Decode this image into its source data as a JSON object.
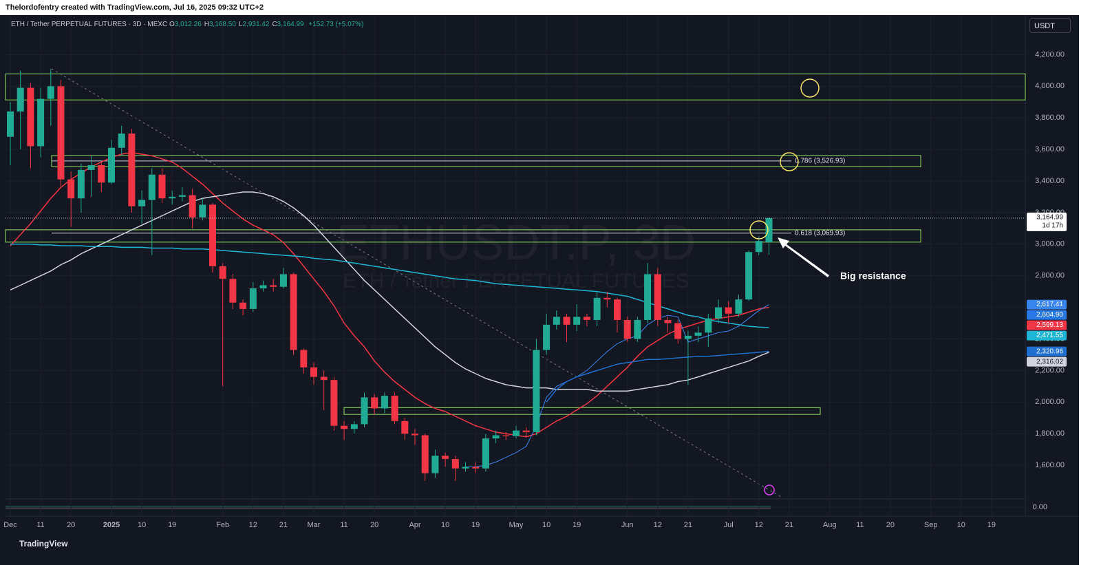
{
  "header": "Thelordofentry created with TradingView.com, Jul 16, 2025 09:32 UTC+2",
  "currency_button": "USDT",
  "footer": "TradingView",
  "chart_data": {
    "type": "candlestick",
    "legend": {
      "symbol": "ETH / Tether PERPETUAL FUTURES · 3D · MEXC",
      "fields": [
        {
          "key": "O",
          "value": "3,012.26"
        },
        {
          "key": "H",
          "value": "3,168.50"
        },
        {
          "key": "L",
          "value": "2,931.42"
        },
        {
          "key": "C",
          "value": "3,164.99"
        }
      ],
      "change": "+152.73 (+5.07%)"
    },
    "watermark": {
      "title": "ETHUSDT.P, 3D",
      "subtitle": "ETH / Tether PERPETUAL FUTURES"
    },
    "categories": [
      "Dec",
      null,
      null,
      "11",
      null,
      null,
      "20",
      null,
      null,
      null,
      "2025",
      null,
      null,
      "10",
      null,
      null,
      "19",
      null,
      null,
      null,
      null,
      "Feb",
      null,
      null,
      "12",
      null,
      null,
      "21",
      null,
      null,
      "Mar",
      null,
      null,
      "11",
      null,
      null,
      "20",
      null,
      null,
      null,
      "Apr",
      null,
      null,
      "10",
      null,
      null,
      "19",
      null,
      null,
      null,
      "May",
      null,
      null,
      "10",
      null,
      null,
      "19",
      null,
      null,
      null,
      null,
      "Jun",
      null,
      null,
      "12",
      null,
      null,
      "21",
      null,
      null,
      null,
      "Jul",
      null,
      null,
      "12",
      null,
      null,
      "21",
      null,
      null,
      null,
      "Aug",
      null,
      null,
      "11",
      null,
      null,
      "20",
      null,
      null,
      null,
      "Sep",
      null,
      null,
      "10",
      null,
      null,
      "19"
    ],
    "open": [
      3680,
      3840,
      3990,
      3620,
      3920,
      4000,
      3410,
      3290,
      3470,
      3500,
      3390,
      3610,
      3700,
      3240,
      3280,
      3440,
      3290,
      3300,
      3310,
      3170,
      3250,
      2860,
      2780,
      2630,
      2590,
      2720,
      2740,
      2730,
      2810,
      2330,
      2220,
      2160,
      2140,
      1850,
      1830,
      1860,
      2030,
      1960,
      2040,
      1880,
      1800,
      1790,
      1550,
      1660,
      1640,
      1580,
      1590,
      1580,
      1770,
      1790,
      1785,
      1820,
      1810,
      2330,
      2490,
      2540,
      2490,
      2540,
      2520,
      2660,
      2650,
      2520,
      2400,
      2520,
      2810,
      2520,
      2500,
      2400,
      2420,
      2440,
      2530,
      2600,
      2560,
      2650,
      2950,
      3012.26,
      null,
      null,
      null,
      null,
      null,
      null,
      null,
      null,
      null,
      null,
      null,
      null,
      null,
      null,
      null,
      null,
      null,
      null,
      null,
      null,
      null,
      null
    ],
    "high": [
      3900,
      4100,
      4020,
      3990,
      4110,
      4040,
      3460,
      3510,
      3560,
      3520,
      3660,
      3750,
      3730,
      3340,
      3480,
      3480,
      3340,
      3360,
      3350,
      3290,
      3260,
      2880,
      2810,
      2650,
      2760,
      2770,
      2780,
      2850,
      2820,
      2340,
      2250,
      2200,
      2160,
      1880,
      1880,
      2060,
      2050,
      2060,
      2060,
      1900,
      1830,
      1800,
      1700,
      1680,
      1660,
      1620,
      1620,
      1800,
      1820,
      1810,
      1850,
      1840,
      2400,
      2560,
      2580,
      2560,
      2620,
      2560,
      2700,
      2700,
      2660,
      2540,
      2540,
      2880,
      2850,
      2540,
      2520,
      2450,
      2480,
      2560,
      2650,
      2640,
      2680,
      2960,
      3050,
      3168.5,
      null,
      null,
      null,
      null,
      null,
      null,
      null,
      null,
      null,
      null,
      null,
      null,
      null,
      null,
      null,
      null,
      null,
      null,
      null,
      null,
      null,
      null
    ],
    "low": [
      3500,
      3600,
      3480,
      3550,
      3750,
      3360,
      3110,
      3200,
      3300,
      3330,
      3380,
      3560,
      3200,
      3130,
      2930,
      3260,
      3250,
      3270,
      3100,
      3150,
      2820,
      2100,
      2590,
      2550,
      2570,
      2700,
      2700,
      2720,
      2300,
      2180,
      2110,
      1950,
      1820,
      1760,
      1800,
      1840,
      1920,
      1930,
      1860,
      1760,
      1730,
      1500,
      1520,
      1590,
      1500,
      1560,
      1550,
      1560,
      1740,
      1760,
      1770,
      1780,
      1790,
      2300,
      2460,
      2380,
      2450,
      2480,
      2480,
      2600,
      2440,
      2380,
      2380,
      2500,
      2480,
      2440,
      2370,
      2110,
      2380,
      2350,
      2500,
      2500,
      2540,
      2640,
      2930,
      2931.42,
      null,
      null,
      null,
      null,
      null,
      null,
      null,
      null,
      null,
      null,
      null,
      null,
      null,
      null,
      null,
      null,
      null,
      null,
      null,
      null,
      null,
      null
    ],
    "close": [
      3840,
      3990,
      3620,
      3920,
      4000,
      3410,
      3290,
      3470,
      3500,
      3390,
      3610,
      3700,
      3240,
      3280,
      3440,
      3290,
      3300,
      3310,
      3170,
      3250,
      2860,
      2780,
      2630,
      2590,
      2720,
      2740,
      2730,
      2810,
      2330,
      2220,
      2160,
      2140,
      1850,
      1830,
      1860,
      2030,
      1960,
      2040,
      1880,
      1800,
      1790,
      1550,
      1660,
      1640,
      1580,
      1590,
      1580,
      1770,
      1790,
      1785,
      1820,
      1810,
      2330,
      2490,
      2540,
      2490,
      2540,
      2520,
      2660,
      2650,
      2520,
      2400,
      2520,
      2810,
      2520,
      2500,
      2400,
      2420,
      2440,
      2530,
      2600,
      2560,
      2650,
      2950,
      3020,
      3164.99,
      null,
      null,
      null,
      null,
      null,
      null,
      null,
      null,
      null,
      null,
      null,
      null,
      null,
      null,
      null,
      null,
      null,
      null,
      null,
      null,
      null,
      null
    ],
    "up_color": "#22ab94",
    "down_color": "#f23645",
    "series": [
      {
        "color": "#f23645",
        "last_label": "2,599.13",
        "values": [
          2990,
          3060,
          3130,
          3210,
          3290,
          3360,
          3410,
          3450,
          3490,
          3520,
          3550,
          3570,
          3580,
          3570,
          3560,
          3540,
          3520,
          3480,
          3430,
          3380,
          3320,
          3260,
          3210,
          3160,
          3120,
          3090,
          3060,
          3010,
          2940,
          2860,
          2780,
          2700,
          2610,
          2500,
          2420,
          2350,
          2260,
          2190,
          2130,
          2080,
          2030,
          1990,
          1960,
          1940,
          1910,
          1880,
          1850,
          1830,
          1810,
          1800,
          1790,
          1780,
          1800,
          1840,
          1880,
          1910,
          1950,
          1990,
          2040,
          2100,
          2160,
          2220,
          2290,
          2350,
          2390,
          2430,
          2460,
          2480,
          2500,
          2520,
          2530,
          2540,
          2550,
          2570,
          2590,
          2599.13,
          null,
          null,
          null,
          null,
          null,
          null,
          null,
          null,
          null,
          null,
          null,
          null,
          null,
          null,
          null,
          null,
          null,
          null,
          null,
          null,
          null,
          null
        ]
      },
      {
        "color": "#d1d4dc",
        "last_label": "2,316.02",
        "values": [
          2710,
          2740,
          2770,
          2800,
          2830,
          2870,
          2900,
          2940,
          2970,
          3000,
          3030,
          3060,
          3090,
          3120,
          3150,
          3180,
          3210,
          3240,
          3270,
          3290,
          3300,
          3310,
          3320,
          3330,
          3330,
          3320,
          3300,
          3270,
          3230,
          3180,
          3120,
          3050,
          2980,
          2910,
          2840,
          2770,
          2710,
          2650,
          2590,
          2530,
          2470,
          2410,
          2350,
          2300,
          2250,
          2210,
          2180,
          2150,
          2130,
          2110,
          2100,
          2090,
          2090,
          2090,
          2080,
          2080,
          2080,
          2080,
          2070,
          2070,
          2070,
          2070,
          2080,
          2090,
          2100,
          2110,
          2130,
          2140,
          2160,
          2180,
          2200,
          2220,
          2240,
          2260,
          2290,
          2316.02,
          null,
          null,
          null,
          null,
          null,
          null,
          null,
          null,
          null,
          null,
          null,
          null,
          null,
          null,
          null,
          null,
          null,
          null,
          null,
          null,
          null,
          null
        ]
      },
      {
        "color": "#1fb6d6",
        "last_label": "2,471.55",
        "values": [
          3000,
          3000,
          3000,
          2995,
          2995,
          2990,
          2990,
          2990,
          2985,
          2985,
          2985,
          2980,
          2980,
          2980,
          2975,
          2975,
          2975,
          2970,
          2970,
          2970,
          2965,
          2960,
          2955,
          2950,
          2945,
          2940,
          2935,
          2930,
          2925,
          2920,
          2910,
          2905,
          2900,
          2890,
          2880,
          2870,
          2860,
          2850,
          2840,
          2830,
          2820,
          2810,
          2800,
          2790,
          2780,
          2775,
          2770,
          2760,
          2750,
          2745,
          2740,
          2735,
          2730,
          2725,
          2720,
          2715,
          2710,
          2705,
          2700,
          2690,
          2680,
          2670,
          2650,
          2630,
          2610,
          2590,
          2570,
          2550,
          2540,
          2520,
          2510,
          2500,
          2490,
          2480,
          2475,
          2471.55,
          null,
          null,
          null,
          null,
          null,
          null,
          null,
          null,
          null,
          null,
          null,
          null,
          null,
          null,
          null,
          null,
          null,
          null,
          null,
          null,
          null,
          null
        ]
      },
      {
        "color": "#3a86f0",
        "last_label": "2,617.41",
        "values": [
          null,
          null,
          null,
          null,
          null,
          null,
          null,
          null,
          null,
          null,
          null,
          null,
          null,
          null,
          null,
          null,
          null,
          null,
          null,
          null,
          null,
          null,
          null,
          null,
          null,
          null,
          null,
          null,
          null,
          null,
          null,
          null,
          null,
          null,
          null,
          null,
          null,
          null,
          null,
          null,
          null,
          null,
          null,
          null,
          null,
          1590,
          1590,
          1600,
          1620,
          1650,
          1680,
          1720,
          1850,
          2030,
          2100,
          2130,
          2160,
          2200,
          2260,
          2320,
          2370,
          2400,
          2420,
          2490,
          2530,
          2550,
          2540,
          2380,
          2400,
          2420,
          2440,
          2450,
          2480,
          2530,
          2580,
          2617.41,
          null,
          null,
          null,
          null,
          null,
          null,
          null,
          null,
          null,
          null,
          null,
          null,
          null,
          null,
          null,
          null,
          null,
          null,
          null,
          null,
          null,
          null
        ]
      },
      {
        "color": "#1e6fd0",
        "last_label": "2,320.96",
        "values": [
          null,
          null,
          null,
          null,
          null,
          null,
          null,
          null,
          null,
          null,
          null,
          null,
          null,
          null,
          null,
          null,
          null,
          null,
          null,
          null,
          null,
          null,
          null,
          null,
          null,
          null,
          null,
          null,
          null,
          null,
          null,
          null,
          null,
          null,
          null,
          null,
          null,
          null,
          null,
          null,
          null,
          null,
          null,
          null,
          null,
          null,
          null,
          null,
          null,
          null,
          null,
          null,
          null,
          2000,
          2080,
          2130,
          2160,
          2180,
          2200,
          2220,
          2240,
          2250,
          2260,
          2270,
          2270,
          2275,
          2280,
          2285,
          2290,
          2290,
          2295,
          2300,
          2305,
          2310,
          2315,
          2320.96,
          null,
          null,
          null,
          null,
          null,
          null,
          null,
          null,
          null,
          null,
          null,
          null,
          null,
          null,
          null,
          null,
          null,
          null,
          null,
          null,
          null,
          null
        ]
      }
    ],
    "extra_tags": [
      {
        "value": 2604.9,
        "label": "2,604.90",
        "color": "#2a78e4"
      }
    ],
    "price_tag": {
      "value": 3164.99,
      "label": "3,164.99",
      "countdown": "1d 17h"
    },
    "zones": [
      {
        "low": 3913,
        "high": 4078
      },
      {
        "low": 3491,
        "high": 3561
      },
      {
        "low": 3013,
        "high": 3091
      },
      {
        "low": 1922,
        "high": 1965
      }
    ],
    "zone_color": "#7fc25a",
    "fib_levels": [
      {
        "value": 3526.93,
        "label": "0.786 (3,526.93)"
      },
      {
        "value": 3069.93,
        "label": "0.618 (3,069.93)"
      }
    ],
    "annotation": "Big resistance",
    "ylim": [
      1400,
      4450
    ],
    "yticks": [
      {
        "value": 1600,
        "label": "1,600.00"
      },
      {
        "value": 1800,
        "label": "1,800.00"
      },
      {
        "value": 2000,
        "label": "2,000.00"
      },
      {
        "value": 2200,
        "label": "2,200.00"
      },
      {
        "value": 2400,
        "label": "2,400.00"
      },
      {
        "value": 2600,
        "label": "2,600.00"
      },
      {
        "value": 2800,
        "label": "2,800.00"
      },
      {
        "value": 3000,
        "label": "3,000.00"
      },
      {
        "value": 3200,
        "label": "3,200.00"
      },
      {
        "value": 3400,
        "label": "3,400.00"
      },
      {
        "value": 3600,
        "label": "3,600.00"
      },
      {
        "value": 3800,
        "label": "3,800.00"
      },
      {
        "value": 4000,
        "label": "4,000.00"
      },
      {
        "value": 4200,
        "label": "4,200.00"
      }
    ],
    "volume_pane": {
      "yticks": [
        {
          "value": 0,
          "label": "0.00"
        }
      ]
    },
    "grid": true
  }
}
